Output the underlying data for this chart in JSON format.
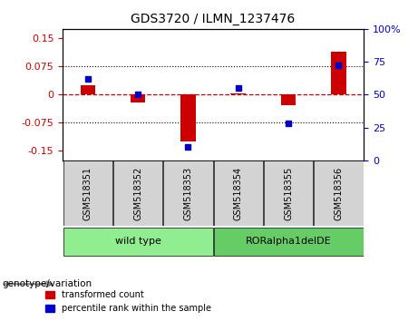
{
  "title": "GDS3720 / ILMN_1237476",
  "samples": [
    "GSM518351",
    "GSM518352",
    "GSM518353",
    "GSM518354",
    "GSM518355",
    "GSM518356"
  ],
  "red_values": [
    0.025,
    -0.022,
    -0.125,
    0.003,
    -0.028,
    0.115
  ],
  "blue_values_pct": [
    62,
    50,
    10,
    55,
    28,
    72
  ],
  "groups": [
    {
      "label": "wild type",
      "start": 0,
      "end": 2,
      "color": "#90EE90"
    },
    {
      "label": "RORalpha1delDE",
      "start": 3,
      "end": 5,
      "color": "#66CC66"
    }
  ],
  "ylim_left": [
    -0.175,
    0.175
  ],
  "ylim_right": [
    0,
    100
  ],
  "yticks_left": [
    -0.15,
    -0.075,
    0,
    0.075,
    0.15
  ],
  "ytick_labels_left": [
    "-0.15",
    "-0.075",
    "0",
    "0.075",
    "0.15"
  ],
  "yticks_right": [
    0,
    25,
    50,
    75,
    100
  ],
  "ytick_labels_right": [
    "0",
    "25",
    "50",
    "75",
    "100%"
  ],
  "hlines_dotted": [
    0.075,
    -0.075
  ],
  "red_color": "#CC0000",
  "blue_color": "#0000CC",
  "bar_width": 0.3,
  "genotype_label": "genotype/variation",
  "legend_red": "transformed count",
  "legend_blue": "percentile rank within the sample",
  "background_color": "#FFFFFF",
  "plot_bg": "#FFFFFF",
  "sample_box_color": "#D3D3D3"
}
